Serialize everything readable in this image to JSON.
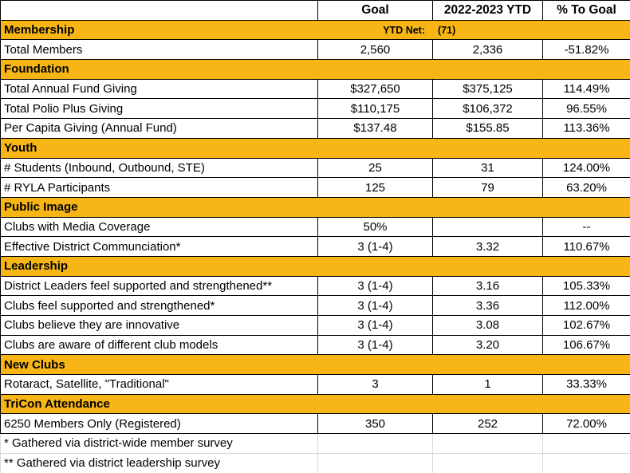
{
  "colors": {
    "gold": "#F8B616",
    "border-dark": "#000000",
    "border-light": "#D9D9D9",
    "text": "#000000",
    "row-bg": "#FFFFFF"
  },
  "header": {
    "label": "",
    "goal": "Goal",
    "ytd": "2022-2023 YTD",
    "pct": "% To Goal"
  },
  "rows": [
    {
      "type": "section",
      "label": "Membership",
      "extra_goal_label": "YTD Net:",
      "extra_ytd_value": "(71)"
    },
    {
      "type": "data",
      "label": "Total Members",
      "goal": "2,560",
      "ytd": "2,336",
      "pct": "-51.82%"
    },
    {
      "type": "section",
      "label": "Foundation"
    },
    {
      "type": "data",
      "label": "Total Annual Fund Giving",
      "goal": "$327,650",
      "ytd": "$375,125",
      "pct": "114.49%"
    },
    {
      "type": "data",
      "label": "Total Polio Plus Giving",
      "goal": "$110,175",
      "ytd": "$106,372",
      "pct": "96.55%"
    },
    {
      "type": "data",
      "label": "Per Capita Giving (Annual Fund)",
      "goal": "$137.48",
      "ytd": "$155.85",
      "pct": "113.36%"
    },
    {
      "type": "section",
      "label": "Youth"
    },
    {
      "type": "data",
      "label": "# Students (Inbound, Outbound, STE)",
      "goal": "25",
      "ytd": "31",
      "pct": "124.00%"
    },
    {
      "type": "data",
      "label": "# RYLA Participants",
      "goal": "125",
      "ytd": "79",
      "pct": "63.20%"
    },
    {
      "type": "section",
      "label": "Public Image"
    },
    {
      "type": "data",
      "label": "Clubs with Media Coverage",
      "goal": "50%",
      "ytd": "",
      "pct": "--"
    },
    {
      "type": "data",
      "label": "Effective District Communciation*",
      "goal": "3 (1-4)",
      "ytd": "3.32",
      "pct": "110.67%"
    },
    {
      "type": "section",
      "label": "Leadership"
    },
    {
      "type": "data",
      "label": "District Leaders feel supported and strengthened**",
      "goal": "3 (1-4)",
      "ytd": "3.16",
      "pct": "105.33%"
    },
    {
      "type": "data",
      "label": "Clubs feel supported and strengthened*",
      "goal": "3 (1-4)",
      "ytd": "3.36",
      "pct": "112.00%"
    },
    {
      "type": "data",
      "label": "Clubs believe they are innovative",
      "goal": "3 (1-4)",
      "ytd": "3.08",
      "pct": "102.67%"
    },
    {
      "type": "data",
      "label": "Clubs are aware of different club models",
      "goal": "3 (1-4)",
      "ytd": "3.20",
      "pct": "106.67%"
    },
    {
      "type": "section",
      "label": "New Clubs"
    },
    {
      "type": "data",
      "label": "Rotaract, Satellite, \"Traditional\"",
      "goal": "3",
      "ytd": "1",
      "pct": "33.33%"
    },
    {
      "type": "section",
      "label": "TriCon Attendance"
    },
    {
      "type": "data",
      "label": "6250 Members Only (Registered)",
      "goal": "350",
      "ytd": "252",
      "pct": "72.00%"
    },
    {
      "type": "footnote",
      "label": "* Gathered via district-wide member survey"
    },
    {
      "type": "footnote",
      "label": "** Gathered via district leadership survey"
    }
  ]
}
